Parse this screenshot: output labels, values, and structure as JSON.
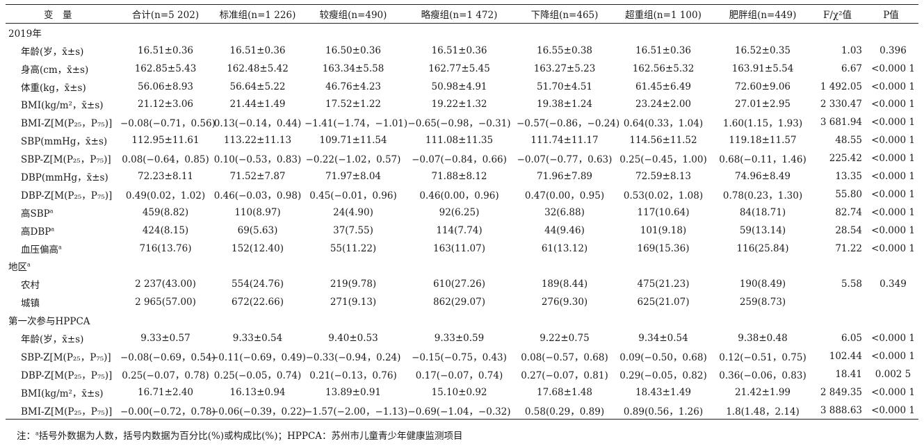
{
  "headers": [
    "变　量",
    "合计(n=5 202)",
    "标准组(n=1 226)",
    "较瘦组(n=490)",
    "略瘦组(n=1 472)",
    "下降组(n=465)",
    "超重组(n=1 100)",
    "肥胖组(n=449)",
    "F/χ²值",
    "P值"
  ],
  "rows": [
    {
      "type": "section",
      "label": "2019年"
    },
    {
      "type": "data",
      "label": "年龄(岁，x̄±s)",
      "cells": [
        "16.51±0.36",
        "16.51±0.36",
        "16.50±0.36",
        "16.51±0.36",
        "16.55±0.38",
        "16.51±0.36",
        "16.52±0.35"
      ],
      "f": "1.03",
      "p": "0.396"
    },
    {
      "type": "data",
      "label": "身高(cm，x̄±s)",
      "cells": [
        "162.85±5.43",
        "162.48±5.42",
        "163.34±5.58",
        "162.77±5.45",
        "163.27±5.23",
        "162.56±5.32",
        "163.91±5.54"
      ],
      "f": "6.67",
      "p": "<0.000 1"
    },
    {
      "type": "data",
      "label": "体重(kg，x̄±s)",
      "cells": [
        "56.06±8.93",
        "56.64±5.22",
        "46.76±4.23",
        "50.98±4.91",
        "51.70±4.51",
        "61.45±6.49",
        "72.60±9.06"
      ],
      "f": "1 492.05",
      "p": "<0.000 1"
    },
    {
      "type": "data",
      "label": "BMI(kg/m²，x̄±s)",
      "cells": [
        "21.12±3.06",
        "21.44±1.49",
        "17.52±1.22",
        "19.22±1.32",
        "19.38±1.24",
        "23.24±2.00",
        "27.01±2.95"
      ],
      "f": "2 330.47",
      "p": "<0.000 1"
    },
    {
      "type": "data",
      "label": "BMI-Z[M(P₂₅，P₇₅)]",
      "cells": [
        "−0.08(−0.71，0.56)",
        "0.13(−0.14，0.44)",
        "−1.41(−1.74，−1.01)",
        "−0.65(−0.98，−0.31)",
        "−0.57(−0.86，−0.24)",
        "0.64(0.33，1.04)",
        "1.60(1.15，1.93)"
      ],
      "f": "3 681.94",
      "p": "<0.000 1"
    },
    {
      "type": "data",
      "label": "SBP(mmHg，x̄±s)",
      "cells": [
        "112.95±11.61",
        "113.22±11.13",
        "109.71±11.54",
        "111.08±11.35",
        "111.74±11.17",
        "114.56±11.52",
        "119.18±11.57"
      ],
      "f": "48.55",
      "p": "<0.000 1"
    },
    {
      "type": "data",
      "label": "SBP-Z[M(P₂₅，P₇₅)]",
      "cells": [
        "0.08(−0.64，0.85)",
        "0.10(−0.53，0.83)",
        "−0.22(−1.02，0.57)",
        "−0.07(−0.84，0.66)",
        "−0.07(−0.77，0.63)",
        "0.25(−0.45，1.00)",
        "0.68(−0.11，1.46)"
      ],
      "f": "225.42",
      "p": "<0.000 1"
    },
    {
      "type": "data",
      "label": "DBP(mmHg，x̄±s)",
      "cells": [
        "72.23±8.11",
        "71.52±7.87",
        "71.97±8.04",
        "71.88±8.12",
        "71.96±7.89",
        "72.59±8.13",
        "74.96±8.49"
      ],
      "f": "13.35",
      "p": "<0.000 1"
    },
    {
      "type": "data",
      "label": "DBP-Z[M(P₂₅，P₇₅)]",
      "cells": [
        "0.49(0.02，1.02)",
        "0.46(−0.03，0.98)",
        "0.45(−0.01，0.96)",
        "0.46(0.00，0.96)",
        "0.47(0.00，0.95)",
        "0.53(0.02，1.08)",
        "0.78(0.23，1.30)"
      ],
      "f": "55.80",
      "p": "<0.000 1"
    },
    {
      "type": "data",
      "label": "高SBP",
      "sup": "a",
      "cells": [
        "459(8.82)",
        "110(8.97)",
        "24(4.90)",
        "92(6.25)",
        "32(6.88)",
        "117(10.64)",
        "84(18.71)"
      ],
      "f": "82.74",
      "p": "<0.000 1"
    },
    {
      "type": "data",
      "label": "高DBP",
      "sup": "a",
      "cells": [
        "424(8.15)",
        "69(5.63)",
        "37(7.55)",
        "114(7.74)",
        "44(9.46)",
        "101(9.18)",
        "59(13.14)"
      ],
      "f": "28.54",
      "p": "<0.000 1"
    },
    {
      "type": "data",
      "label": "血压偏高",
      "sup": "a",
      "cells": [
        "716(13.76)",
        "152(12.40)",
        "55(11.22)",
        "163(11.07)",
        "61(13.12)",
        "169(15.36)",
        "116(25.84)"
      ],
      "f": "71.22",
      "p": "<0.000 1"
    },
    {
      "type": "section",
      "label": "地区",
      "sup": "a"
    },
    {
      "type": "data",
      "label": "农村",
      "cells": [
        "2 237(43.00)",
        "554(24.76)",
        "219(9.78)",
        "610(27.26)",
        "189(8.44)",
        "475(21.23)",
        "190(8.49)"
      ],
      "f": "5.58",
      "p": "0.349"
    },
    {
      "type": "data",
      "label": "城镇",
      "cells": [
        "2 965(57.00)",
        "672(22.66)",
        "271(9.13)",
        "862(29.07)",
        "276(9.30)",
        "625(21.07)",
        "259(8.73)"
      ],
      "f": "",
      "p": ""
    },
    {
      "type": "section",
      "label": "第一次参与HPPCA"
    },
    {
      "type": "data",
      "label": "年龄(岁，x̄±s)",
      "cells": [
        "9.33±0.57",
        "9.33±0.54",
        "9.40±0.53",
        "9.33±0.59",
        "9.22±0.75",
        "9.34±0.54",
        "9.38±0.48"
      ],
      "f": "6.05",
      "p": "<0.000 1"
    },
    {
      "type": "data",
      "label": "SBP-Z[M(P₂₅，P₇₅)]",
      "cells": [
        "−0.08(−0.69，0.54)",
        "−0.11(−0.69，0.49)",
        "−0.33(−0.94，0.24)",
        "−0.15(−0.75，0.43)",
        "0.08(−0.57，0.68)",
        "0.09(−0.50，0.68)",
        "0.12(−0.51，0.75)"
      ],
      "f": "102.44",
      "p": "<0.000 1"
    },
    {
      "type": "data",
      "label": "DBP-Z[M(P₂₅，P₇₅)]",
      "cells": [
        "0.25(−0.07，0.78)",
        "0.25(−0.05，0.74)",
        "0.21(−0.13，0.76)",
        "0.17(−0.07，0.74)",
        "0.27(−0.07，0.81)",
        "0.29(−0.05，0.82)",
        "0.36(−0.06，0.83)"
      ],
      "f": "18.41",
      "p": "0.002 5"
    },
    {
      "type": "data",
      "label": "BMI(kg/m²，x̄±s)",
      "cells": [
        "16.71±2.40",
        "16.13±0.94",
        "13.89±0.91",
        "15.10±0.92",
        "17.68±1.48",
        "18.43±1.49",
        "21.42±1.99"
      ],
      "f": "2 849.35",
      "p": "<0.000 1"
    },
    {
      "type": "data",
      "label": "BMI-Z[M(P₂₅，P₇₅)]",
      "cells": [
        "−0.00(−0.72，0.78)",
        "−0.06(−0.39，0.22)",
        "−1.57(−2.00，−1.13)",
        "−0.69(−1.04，−0.32)",
        "0.58(0.29，0.89)",
        "0.89(0.56，1.26)",
        "1.8(1.48，2.14)"
      ],
      "f": "3 888.63",
      "p": "<0.000 1"
    }
  ],
  "note_prefix": "注：",
  "note_sup": "a",
  "note_text": "括号外数据为人数，括号内数据为百分比(%)或构成比(%)；HPPCA：苏州市儿童青少年健康监测项目"
}
